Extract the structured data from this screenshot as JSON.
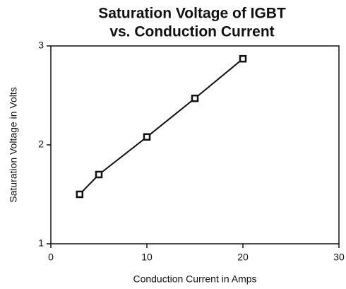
{
  "chart_data": {
    "type": "line",
    "title": [
      "Saturation Voltage of IGBT",
      "vs. Conduction Current"
    ],
    "x_label": "Conduction Current in Amps",
    "y_label": "Saturation Voltage in Volts",
    "series": [
      {
        "x": [
          3,
          5,
          10,
          15,
          20
        ],
        "values": [
          1.5,
          1.7,
          2.08,
          2.47,
          2.87
        ],
        "color": "#111111"
      }
    ],
    "xlim": [
      0,
      30
    ],
    "xticks": [
      0,
      10,
      20,
      30
    ],
    "ylim": [
      1,
      3
    ],
    "yticks": [
      1,
      2,
      3
    ],
    "grid": false
  }
}
